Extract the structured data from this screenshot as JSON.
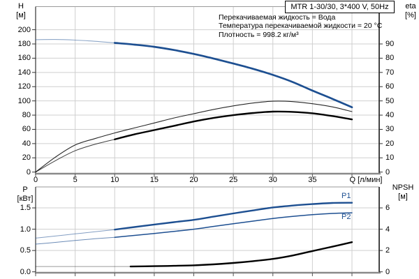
{
  "colors": {
    "curve_blue": "#1d4f91",
    "curve_black": "#000000",
    "grid": "#cfcfcf",
    "axis_gray": "#8a8a8a",
    "frame_dark": "#303030",
    "text": "#000000"
  },
  "chart_data": [
    {
      "id": "head-and-efficiency",
      "type": "line",
      "title": "MTR 1-30/30, 3*400 V, 50Hz",
      "annotations": [
        "Перекачиваемая жидкость = Вода",
        "Температура перекачиваемой жидкости = 20 °C",
        "Плотность = 998.2 кг/м³"
      ],
      "x_axis": {
        "label": "Q [л/мин]",
        "min": 0,
        "max": 40,
        "ticks": [
          0,
          5,
          10,
          15,
          20,
          25,
          30,
          35,
          40
        ],
        "tick_labels": [
          "0",
          "5",
          "10",
          "15",
          "20",
          "25",
          "30",
          "35",
          ""
        ]
      },
      "y_left": {
        "label": "H",
        "unit": "[м]",
        "min": 0,
        "max": 200,
        "ticks": [
          0,
          20,
          40,
          60,
          80,
          100,
          120,
          140,
          160,
          180,
          200
        ]
      },
      "y_right": {
        "label": "eta",
        "unit": "[%]",
        "min": 0,
        "max": 90,
        "ticks": [
          0,
          10,
          20,
          30,
          40,
          50,
          60,
          70,
          80,
          90
        ]
      },
      "grid": true,
      "series": [
        {
          "name": "H",
          "axis": "left",
          "color": "curve_blue",
          "thick_from_q": 10,
          "points": [
            [
              0,
              186
            ],
            [
              2.5,
              186.3
            ],
            [
              5,
              185.4
            ],
            [
              7.5,
              183.7
            ],
            [
              10,
              181.5
            ],
            [
              12.5,
              179
            ],
            [
              15,
              176
            ],
            [
              17.5,
              171.5
            ],
            [
              20,
              166
            ],
            [
              22.5,
              159.5
            ],
            [
              25,
              152.5
            ],
            [
              27.5,
              145
            ],
            [
              30,
              136.5
            ],
            [
              32.5,
              126.5
            ],
            [
              35,
              114.5
            ],
            [
              37.5,
              103
            ],
            [
              40,
              91
            ]
          ]
        },
        {
          "name": "eta_pump",
          "axis": "right",
          "color": "curve_black",
          "points": [
            [
              0,
              0
            ],
            [
              2.5,
              10.5
            ],
            [
              5,
              19
            ],
            [
              7.5,
              23.5
            ],
            [
              10,
              27.5
            ],
            [
              12.5,
              31
            ],
            [
              15,
              34.5
            ],
            [
              17.5,
              38
            ],
            [
              20,
              41
            ],
            [
              22.5,
              44
            ],
            [
              25,
              46.5
            ],
            [
              27.5,
              48.5
            ],
            [
              30,
              49.8
            ],
            [
              32.5,
              49.5
            ],
            [
              35,
              48
            ],
            [
              37.5,
              45.8
            ],
            [
              40,
              42.5
            ]
          ]
        },
        {
          "name": "eta_total",
          "axis": "right",
          "color": "curve_black",
          "thick_from_q": 10,
          "points": [
            [
              0,
              0
            ],
            [
              2.5,
              8
            ],
            [
              5,
              15
            ],
            [
              7.5,
              19.5
            ],
            [
              10,
              23
            ],
            [
              12.5,
              26.5
            ],
            [
              15,
              29.5
            ],
            [
              17.5,
              32.5
            ],
            [
              20,
              35.5
            ],
            [
              22.5,
              38
            ],
            [
              25,
              40
            ],
            [
              27.5,
              41.5
            ],
            [
              30,
              42.5
            ],
            [
              32.5,
              42.3
            ],
            [
              35,
              41.3
            ],
            [
              37.5,
              39.4
            ],
            [
              40,
              37
            ]
          ]
        }
      ]
    },
    {
      "id": "power-and-npsh",
      "type": "line",
      "x_axis": {
        "label": "",
        "min": 0,
        "max": 40,
        "ticks": [
          0,
          5,
          10,
          15,
          20,
          25,
          30,
          35,
          40
        ],
        "tick_labels": [
          "",
          "",
          "",
          "",
          "",
          "",
          "",
          "",
          ""
        ]
      },
      "y_left": {
        "label": "P",
        "unit": "[кВт]",
        "min": 0,
        "max": 1.5,
        "ticks": [
          "0.0",
          "0.5",
          "1.0",
          "1.5"
        ]
      },
      "y_right": {
        "label": "NPSH",
        "unit": "[м]",
        "min": 0,
        "max": 6,
        "ticks": [
          0,
          2,
          4,
          6
        ]
      },
      "grid": true,
      "series": [
        {
          "name": "P1",
          "label": "P1",
          "axis": "left",
          "color": "curve_blue",
          "thick_from_q": 10,
          "points": [
            [
              0,
              0.79
            ],
            [
              2.5,
              0.84
            ],
            [
              5,
              0.89
            ],
            [
              7.5,
              0.94
            ],
            [
              10,
              0.99
            ],
            [
              12.5,
              1.05
            ],
            [
              15,
              1.11
            ],
            [
              17.5,
              1.165
            ],
            [
              20,
              1.22
            ],
            [
              22.5,
              1.295
            ],
            [
              25,
              1.37
            ],
            [
              27.5,
              1.44
            ],
            [
              30,
              1.51
            ],
            [
              32.5,
              1.555
            ],
            [
              35,
              1.59
            ],
            [
              37.5,
              1.615
            ],
            [
              40,
              1.62
            ]
          ]
        },
        {
          "name": "P2",
          "label": "P2",
          "axis": "left",
          "color": "curve_blue",
          "thick_from_q": 10,
          "points": [
            [
              0,
              0.65
            ],
            [
              2.5,
              0.69
            ],
            [
              5,
              0.735
            ],
            [
              7.5,
              0.775
            ],
            [
              10,
              0.81
            ],
            [
              12.5,
              0.855
            ],
            [
              15,
              0.9
            ],
            [
              17.5,
              0.95
            ],
            [
              20,
              1.0
            ],
            [
              22.5,
              1.065
            ],
            [
              25,
              1.13
            ],
            [
              27.5,
              1.19
            ],
            [
              30,
              1.25
            ],
            [
              32.5,
              1.3
            ],
            [
              35,
              1.34
            ],
            [
              37.5,
              1.37
            ],
            [
              40,
              1.385
            ]
          ]
        },
        {
          "name": "NPSH",
          "label": "NPSH",
          "axis": "right",
          "color": "curve_black",
          "thick_from_q": 12,
          "points": [
            [
              0,
              0.5
            ],
            [
              4,
              0.5
            ],
            [
              8,
              0.5
            ],
            [
              12,
              0.5
            ],
            [
              15,
              0.53
            ],
            [
              17.5,
              0.56
            ],
            [
              20,
              0.61
            ],
            [
              22.5,
              0.7
            ],
            [
              25,
              0.83
            ],
            [
              27.5,
              1.0
            ],
            [
              30,
              1.21
            ],
            [
              32.5,
              1.53
            ],
            [
              35,
              1.95
            ],
            [
              37.5,
              2.36
            ],
            [
              40,
              2.78
            ]
          ]
        }
      ]
    }
  ]
}
